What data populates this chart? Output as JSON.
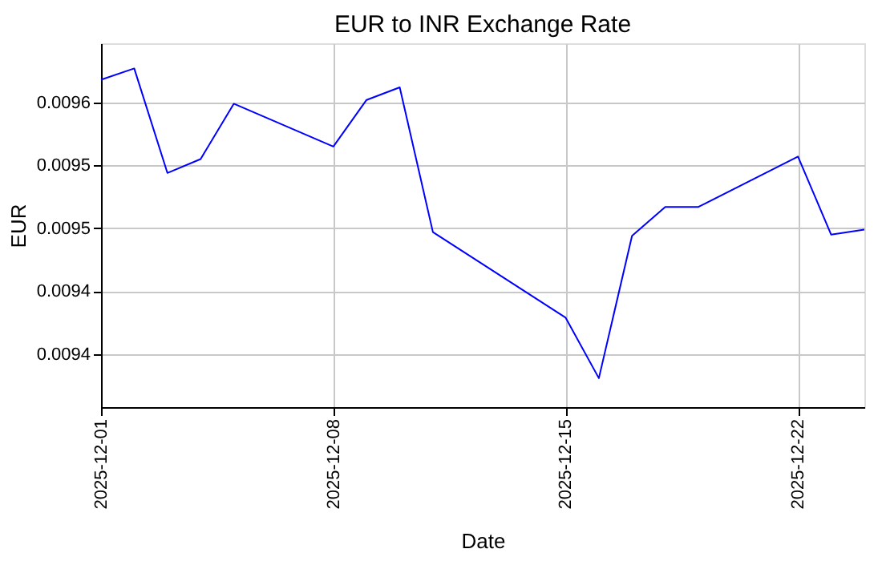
{
  "chart_data": {
    "type": "line",
    "title": "EUR to INR Exchange Rate",
    "xlabel": "Date",
    "ylabel": "EUR",
    "x": [
      "2025-12-01",
      "2025-12-02",
      "2025-12-03",
      "2025-12-04",
      "2025-12-05",
      "2025-12-08",
      "2025-12-09",
      "2025-12-10",
      "2025-12-11",
      "2025-12-15",
      "2025-12-16",
      "2025-12-17",
      "2025-12-18",
      "2025-12-19",
      "2025-12-22",
      "2025-12-23",
      "2025-12-24"
    ],
    "series": [
      {
        "color": "#0000ff",
        "values": [
          0.009618,
          0.009627,
          0.009544,
          0.009555,
          0.009599,
          0.009565,
          0.009602,
          0.009612,
          0.009497,
          0.009429,
          0.009381,
          0.009494,
          0.009517,
          0.009517,
          0.009557,
          0.009495,
          0.009499
        ]
      }
    ],
    "xlim": [
      "2025-12-01",
      "2025-12-24"
    ],
    "xticks": [
      "2025-12-01",
      "2025-12-08",
      "2025-12-15",
      "2025-12-22"
    ],
    "ylim": [
      0.009358,
      0.009647
    ],
    "yticks": [
      {
        "value": 0.0094,
        "label": "0.0094"
      },
      {
        "value": 0.00945,
        "label": "0.0094"
      },
      {
        "value": 0.0095,
        "label": "0.0095"
      },
      {
        "value": 0.00955,
        "label": "0.0095"
      },
      {
        "value": 0.0096,
        "label": "0.0096"
      }
    ],
    "grid": true,
    "legend": false,
    "marker": "none",
    "line_style": "solid"
  }
}
